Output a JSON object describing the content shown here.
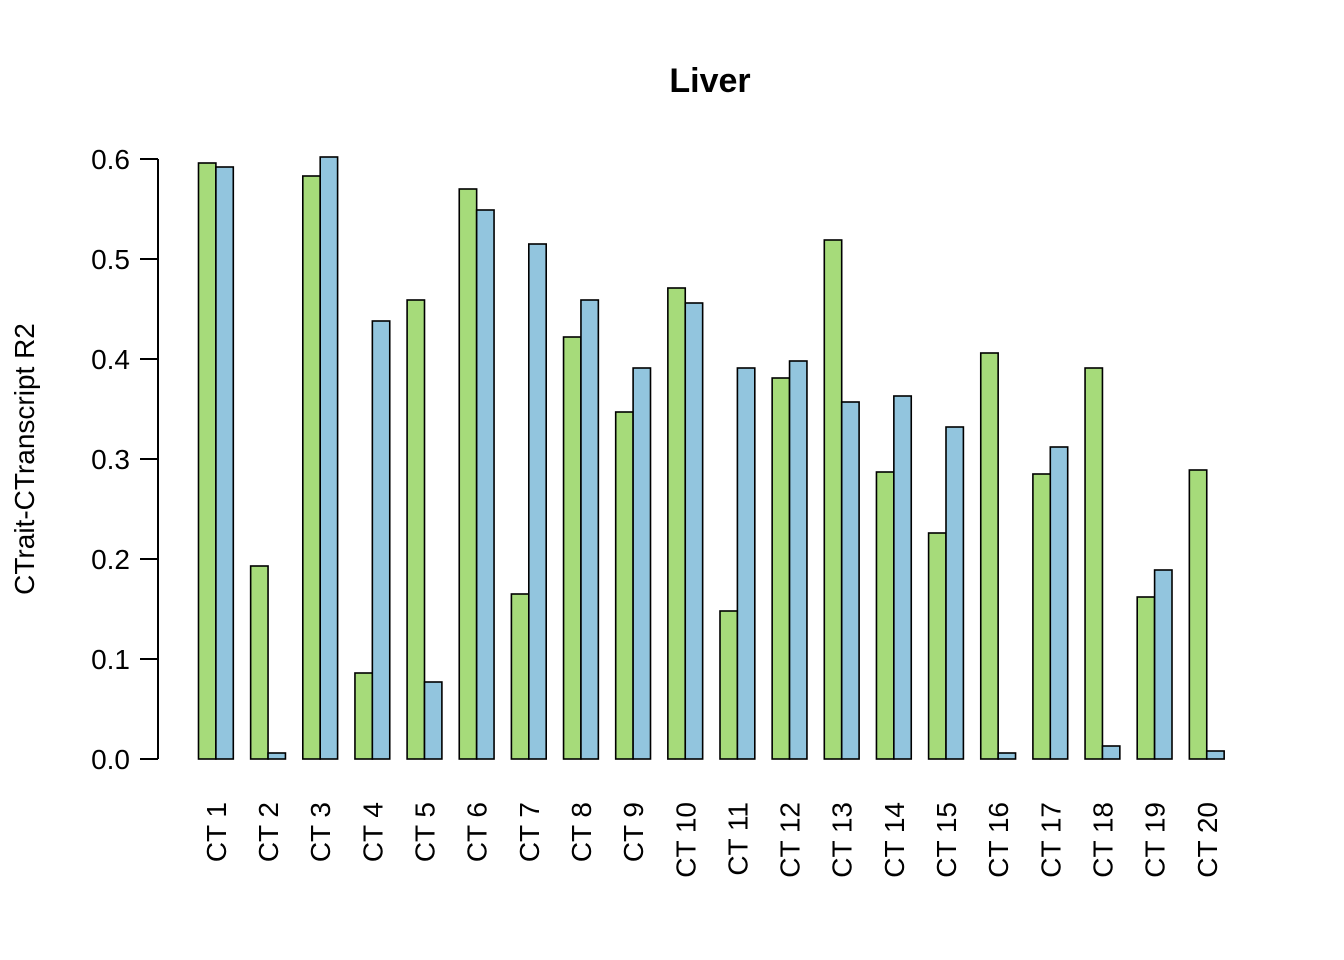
{
  "chart_data": {
    "type": "bar",
    "title": "Liver",
    "xlabel": "",
    "ylabel": "CTrait-CTranscript R2",
    "ylim": [
      0,
      0.6
    ],
    "yticks": [
      0.0,
      0.1,
      0.2,
      0.3,
      0.4,
      0.5,
      0.6
    ],
    "ytick_labels": [
      "0.0",
      "0.1",
      "0.2",
      "0.3",
      "0.4",
      "0.5",
      "0.6"
    ],
    "grid": false,
    "legend": "none",
    "categories": [
      "CT 1",
      "CT 2",
      "CT 3",
      "CT 4",
      "CT 5",
      "CT 6",
      "CT 7",
      "CT 8",
      "CT 9",
      "CT 10",
      "CT 11",
      "CT 12",
      "CT 13",
      "CT 14",
      "CT 15",
      "CT 16",
      "CT 17",
      "CT 18",
      "CT 19",
      "CT 20"
    ],
    "series": [
      {
        "color": "#A6DB7A",
        "values": [
          0.596,
          0.193,
          0.583,
          0.086,
          0.459,
          0.57,
          0.165,
          0.422,
          0.347,
          0.471,
          0.148,
          0.381,
          0.519,
          0.287,
          0.226,
          0.406,
          0.285,
          0.391,
          0.162,
          0.289
        ]
      },
      {
        "color": "#92C5DE",
        "values": [
          0.592,
          0.006,
          0.602,
          0.438,
          0.077,
          0.549,
          0.515,
          0.459,
          0.391,
          0.456,
          0.391,
          0.398,
          0.357,
          0.363,
          0.332,
          0.006,
          0.312,
          0.013,
          0.189,
          0.008
        ]
      }
    ]
  }
}
